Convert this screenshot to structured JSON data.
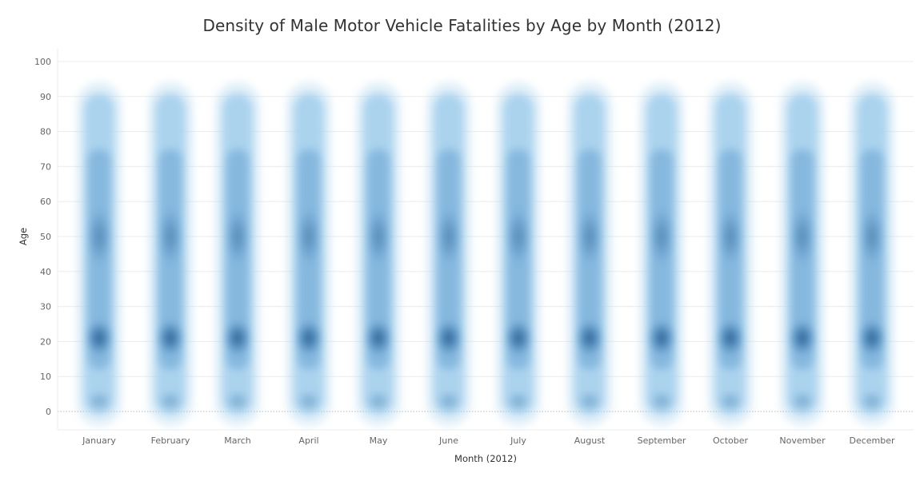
{
  "chart_data": {
    "type": "density-strip",
    "title": "Density of Male Motor Vehicle Fatalities by Age by Month (2012)",
    "xlabel": "Month (2012)",
    "ylabel": "Age",
    "categories": [
      "January",
      "February",
      "March",
      "April",
      "May",
      "June",
      "July",
      "August",
      "September",
      "October",
      "November",
      "December"
    ],
    "y_ticks": [
      0,
      10,
      20,
      30,
      40,
      50,
      60,
      70,
      80,
      90,
      100
    ],
    "ylim": [
      -5,
      103
    ],
    "grid": true,
    "legend": "none",
    "colors": {
      "light": "#a9d2ee",
      "mid": "#5a98cc",
      "dark": "#154b7e",
      "grid": "#ececec",
      "zero_line": "#b8b8b8"
    },
    "density_peaks": [
      {
        "age": 21,
        "intensity": 0.8
      },
      {
        "age": 50,
        "intensity": 0.42
      },
      {
        "age": 3,
        "intensity": 0.3
      }
    ],
    "age_range": [
      0,
      90
    ]
  }
}
